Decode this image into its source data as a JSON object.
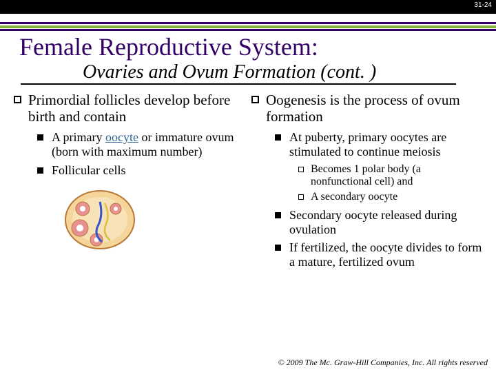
{
  "slide_number": "31-24",
  "title": "Female Reproductive System:",
  "subtitle": "Ovaries and Ovum Formation (cont. )",
  "left": {
    "main": "Primordial follicles develop before birth and contain",
    "sub1_pre": "A primary ",
    "sub1_link": "oocyte",
    "sub1_post": " or immature ovum (born with maximum number)",
    "sub2": "Follicular cells"
  },
  "right": {
    "main": "Oogenesis is the process of ovum formation",
    "sub1": "At puberty, primary oocytes are stimulated to continue meiosis",
    "sub1a": "Becomes 1 polar body (a nonfunctional cell) and",
    "sub1b": "A secondary oocyte",
    "sub2": "Secondary oocyte released during ovulation",
    "sub3": "If fertilized, the oocyte divides to form a mature, fertilized ovum"
  },
  "copyright": "© 2009 The Mc. Graw-Hill Companies, Inc. All rights reserved",
  "illustration": {
    "bg": "#f5d59a",
    "outline": "#b87838",
    "inner": "#f8e2b8",
    "follicle": "#e89090",
    "follicle_center": "#ffffff",
    "vessel": "#3355cc",
    "vessel2": "#d8c040",
    "width": 110,
    "height": 92
  }
}
